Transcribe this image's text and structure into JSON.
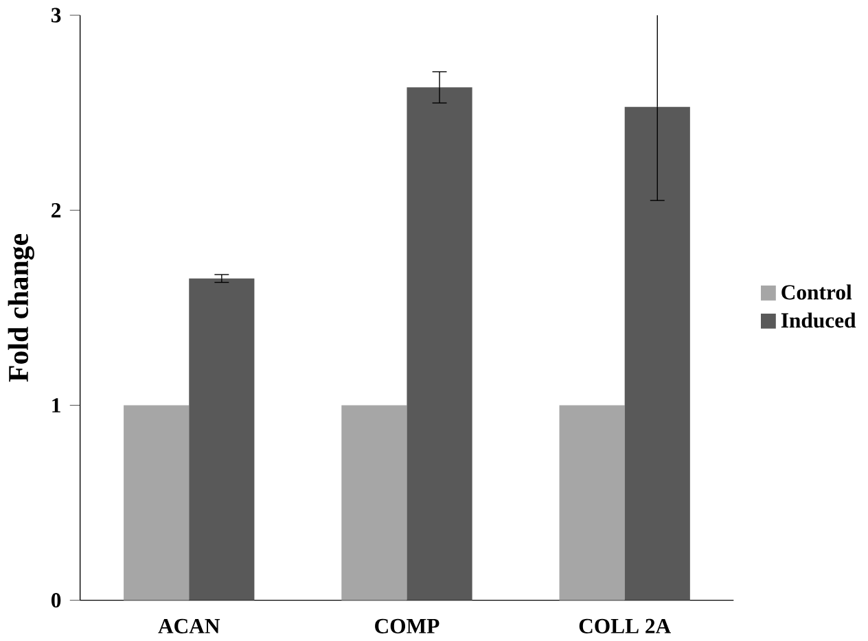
{
  "chart_data": {
    "type": "bar",
    "ylabel": "Fold change",
    "categories": [
      "ACAN",
      "COMP",
      "COLL 2A"
    ],
    "series": [
      {
        "name": "Control",
        "color": "#a6a6a6",
        "values": [
          1,
          1,
          1
        ]
      },
      {
        "name": "Induced",
        "color": "#595959",
        "values": [
          1.65,
          2.63,
          2.53
        ],
        "errors": [
          0.02,
          0.08,
          0.48
        ]
      }
    ],
    "ylim": [
      0,
      3
    ],
    "yticks": [
      0,
      1,
      2,
      3
    ],
    "legend": "right",
    "grid": false
  }
}
